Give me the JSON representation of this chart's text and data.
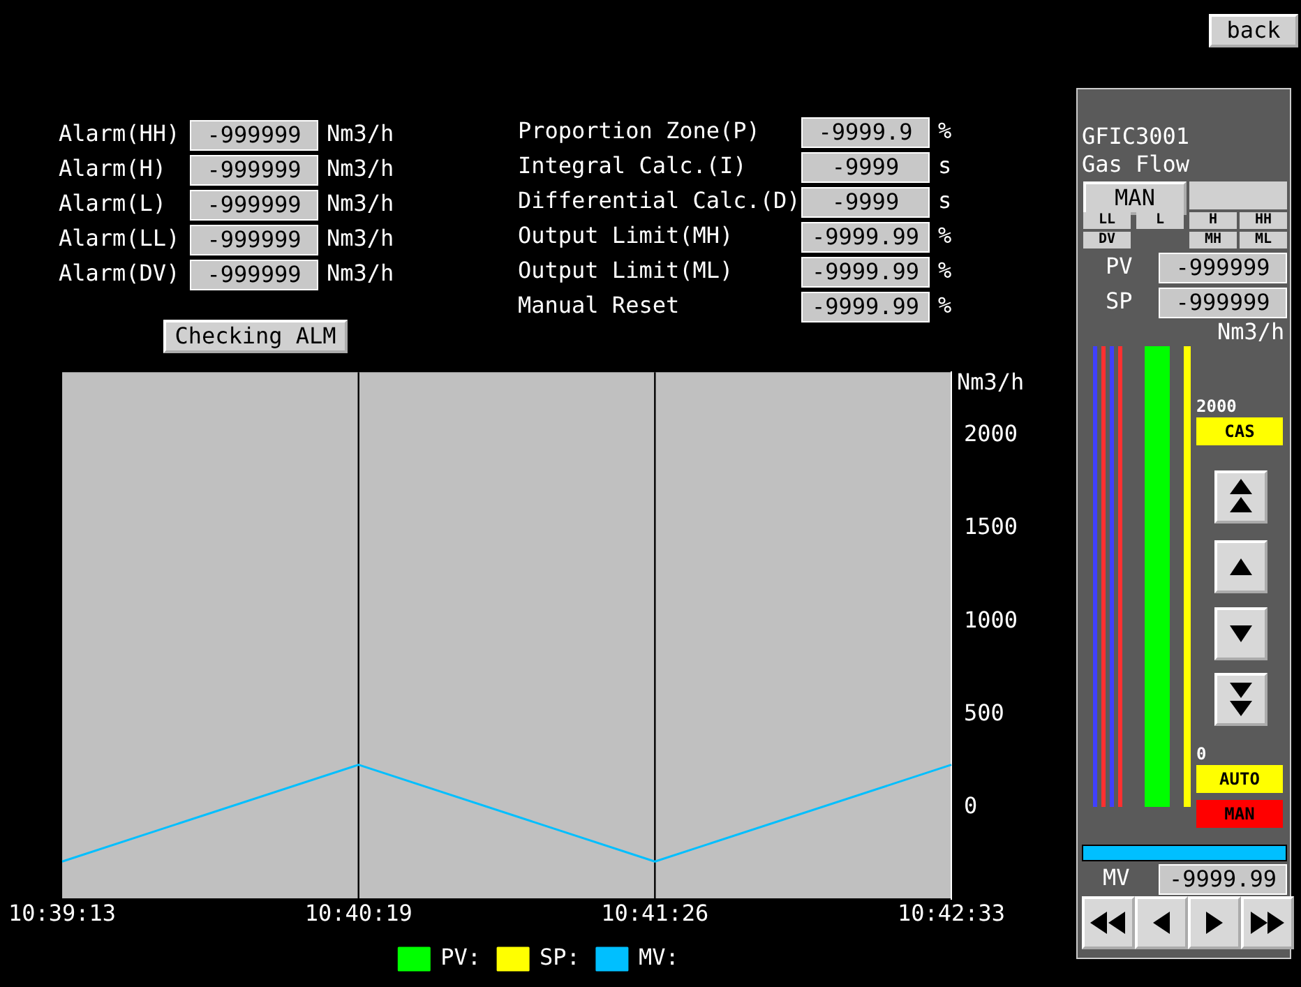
{
  "chart_data": {
    "type": "line",
    "ylabel": "Nm3/h",
    "categories": [
      "10:39:13",
      "10:40:19",
      "10:41:26",
      "10:42:33"
    ],
    "series": [
      {
        "name": "PV:",
        "color": "#00ff00",
        "values": [
          null,
          null,
          null,
          null
        ]
      },
      {
        "name": "SP:",
        "color": "#ffff00",
        "values": [
          null,
          null,
          null,
          null
        ]
      },
      {
        "name": "MV:",
        "color": "#00bfff",
        "values": [
          -290,
          230,
          -290,
          230
        ]
      }
    ],
    "ylim": [
      -490,
      2340
    ],
    "yticks": [
      0,
      500,
      1000,
      1500,
      2000
    ],
    "legend": "bottom",
    "marker": "none",
    "line_style": "solid",
    "ref_lines": [
      {
        "axis": "x",
        "value": "10:40:19",
        "color": "#000000"
      },
      {
        "axis": "x",
        "value": "10:41:26",
        "color": "#000000"
      }
    ],
    "annotations": [
      "back",
      "Alarm(HH)",
      "Alarm(H)",
      "Alarm(L)",
      "Alarm(LL)",
      "Alarm(DV)",
      "-999999",
      "-999999",
      "-999999",
      "-999999",
      "-999999",
      "Nm3/h",
      "Nm3/h",
      "Nm3/h",
      "Nm3/h",
      "Nm3/h",
      "Proportion Zone(P)",
      "-9999.9",
      "%",
      "Integral Calc.(I)",
      "-9999",
      "s",
      "Differential Calc.(D)",
      "-9999",
      "s",
      "Output Limit(MH)",
      "-9999.99",
      "%",
      "Output Limit(ML)",
      "-9999.99",
      "%",
      "Manual Reset",
      "-9999.99",
      "%",
      "Checking ALM",
      "GFIC3001",
      "Gas Flow",
      "MAN",
      "LL",
      "L",
      "H",
      "HH",
      "DV",
      "MH",
      "ML",
      "PV",
      "-999999",
      "SP",
      "-999999",
      "Nm3/h",
      "2000",
      "CAS",
      "0",
      "AUTO",
      "MAN",
      "MV",
      "-9999.99"
    ]
  }
}
